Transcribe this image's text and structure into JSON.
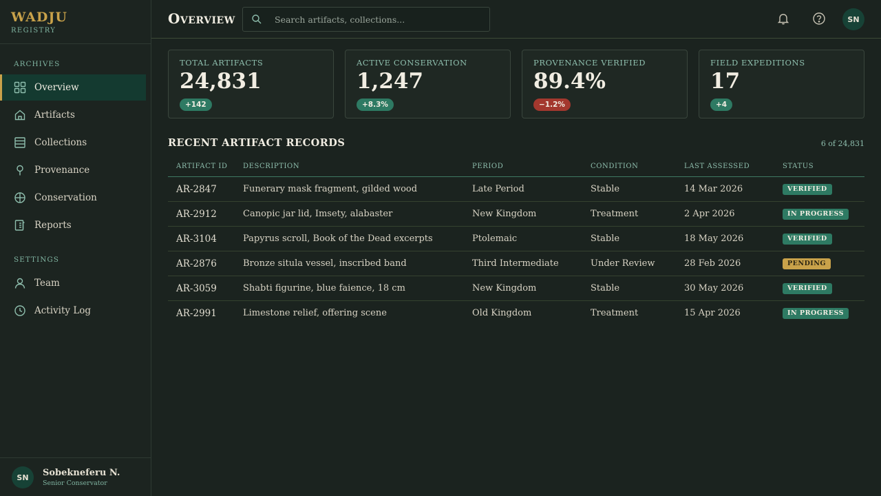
{
  "brand": {
    "name": "WADJU",
    "subtitle": "REGISTRY"
  },
  "sidebar": {
    "sections": [
      {
        "label": "ARCHIVES"
      },
      {
        "label": "SETTINGS"
      }
    ],
    "items": [
      {
        "label": "Overview",
        "icon": "grid-icon",
        "active": true
      },
      {
        "label": "Artifacts",
        "icon": "home-icon"
      },
      {
        "label": "Collections",
        "icon": "stack-icon"
      },
      {
        "label": "Provenance",
        "icon": "map-pin-icon"
      },
      {
        "label": "Conservation",
        "icon": "compass-icon"
      },
      {
        "label": "Reports",
        "icon": "report-icon"
      },
      {
        "label": "Team",
        "icon": "user-icon"
      },
      {
        "label": "Activity Log",
        "icon": "clock-icon"
      }
    ],
    "user": {
      "initials": "SN",
      "name": "Sobekneferu N.",
      "role": "Senior Conservator"
    }
  },
  "header": {
    "title": "Overview",
    "search_placeholder": "Search artifacts, collections...",
    "avatar_initials": "SN"
  },
  "stats": [
    {
      "label": "TOTAL ARTIFACTS",
      "value": "24,831",
      "delta": "+142",
      "trend": "pos"
    },
    {
      "label": "ACTIVE CONSERVATION",
      "value": "1,247",
      "delta": "+8.3%",
      "trend": "pos"
    },
    {
      "label": "PROVENANCE VERIFIED",
      "value": "89.4%",
      "delta": "−1.2%",
      "trend": "neg"
    },
    {
      "label": "FIELD EXPEDITIONS",
      "value": "17",
      "delta": "+4",
      "trend": "pos"
    }
  ],
  "table": {
    "title": "RECENT ARTIFACT RECORDS",
    "count": "6 of 24,831",
    "columns": [
      "ARTIFACT ID",
      "DESCRIPTION",
      "PERIOD",
      "CONDITION",
      "LAST ASSESSED",
      "STATUS"
    ],
    "rows": [
      {
        "id": "AR-2847",
        "description": "Funerary mask fragment, gilded wood",
        "period": "Late Period",
        "condition": "Stable",
        "assessed": "14 Mar 2026",
        "status": "VERIFIED",
        "status_kind": "verified"
      },
      {
        "id": "AR-2912",
        "description": "Canopic jar lid, Imsety, alabaster",
        "period": "New Kingdom",
        "condition": "Treatment",
        "assessed": "2 Apr 2026",
        "status": "IN PROGRESS",
        "status_kind": "progress"
      },
      {
        "id": "AR-3104",
        "description": "Papyrus scroll, Book of the Dead excerpts",
        "period": "Ptolemaic",
        "condition": "Stable",
        "assessed": "18 May 2026",
        "status": "VERIFIED",
        "status_kind": "verified"
      },
      {
        "id": "AR-2876",
        "description": "Bronze situla vessel, inscribed band",
        "period": "Third Intermediate",
        "condition": "Under Review",
        "assessed": "28 Feb 2026",
        "status": "PENDING",
        "status_kind": "pending"
      },
      {
        "id": "AR-3059",
        "description": "Shabti figurine, blue faience, 18 cm",
        "period": "New Kingdom",
        "condition": "Stable",
        "assessed": "30 May 2026",
        "status": "VERIFIED",
        "status_kind": "verified"
      },
      {
        "id": "AR-2991",
        "description": "Limestone relief, offering scene",
        "period": "Old Kingdom",
        "condition": "Treatment",
        "assessed": "15 Apr 2026",
        "status": "IN PROGRESS",
        "status_kind": "progress"
      }
    ]
  },
  "colors": {
    "accent_gold": "#c9a24a",
    "accent_teal": "#2e7a63",
    "negative": "#a3382e",
    "background": "#1b231f"
  }
}
